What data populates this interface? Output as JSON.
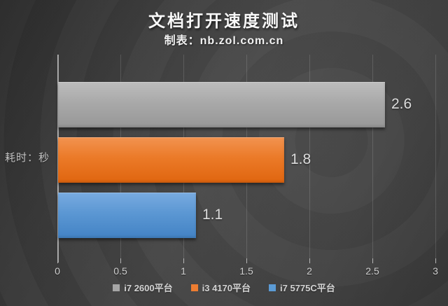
{
  "chart_data": {
    "type": "bar",
    "orientation": "horizontal",
    "title": "文档打开速度测试",
    "subtitle": "制表：nb.zol.com.cn",
    "ylabel": "耗时：秒",
    "xlabel": "",
    "xlim": [
      0,
      3
    ],
    "x_ticks": [
      0,
      0.5,
      1,
      1.5,
      2,
      2.5,
      3
    ],
    "x_tick_labels": [
      "0",
      "0.5",
      "1",
      "1.5",
      "2",
      "2.5",
      "3"
    ],
    "grid": true,
    "legend_position": "bottom",
    "categories": [
      "i7 2600平台",
      "i3 4170平台",
      "i7 5775C平台"
    ],
    "values": [
      2.6,
      1.8,
      1.1
    ],
    "value_labels": [
      "2.6",
      "1.8",
      "1.1"
    ],
    "series": [
      {
        "name": "i7 2600平台",
        "value": 2.6,
        "swatch": "#a6a6a6",
        "gradient": [
          "#bdbdbd",
          "#a9a9a9",
          "#979797"
        ]
      },
      {
        "name": "i3 4170平台",
        "value": 1.8,
        "swatch": "#ed7d31",
        "gradient": [
          "#f29350",
          "#eb7a28",
          "#e0650f"
        ]
      },
      {
        "name": "i7 5775C平台",
        "value": 1.1,
        "swatch": "#5b9bd5",
        "gradient": [
          "#79abe0",
          "#5b97d3",
          "#4383c5"
        ]
      }
    ],
    "colors": {
      "background": "#3e3e3e",
      "gridline": "#5c5c5c",
      "axis_line": "#b9b9b9",
      "value_label": "#dcdcdc",
      "tick_label": "#cfcfcf",
      "title": "#f8f8f8"
    }
  }
}
